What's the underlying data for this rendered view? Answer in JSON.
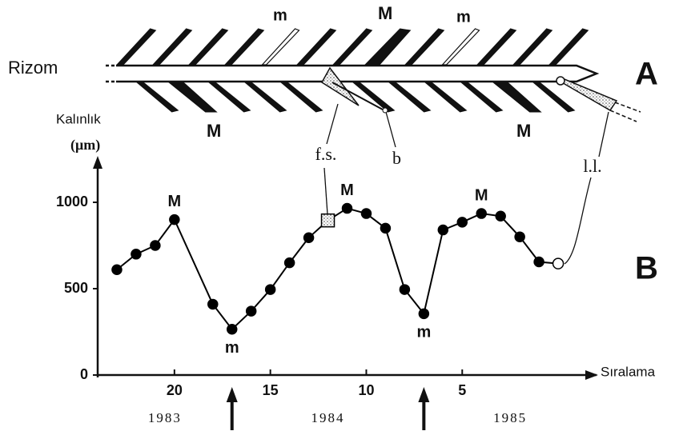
{
  "diagram": {
    "rhizome_label": "Rizom",
    "panel": "A",
    "leaf_labels": [
      "m",
      "M",
      "m",
      "M",
      "M"
    ],
    "b_label": "b"
  },
  "chart_data": {
    "type": "line",
    "panel": "B",
    "y_label": "Kalınlık",
    "y_unit": "(μm)",
    "x_label": "Sıralama",
    "x": [
      23,
      22,
      21,
      20,
      18,
      17,
      16,
      15,
      14,
      13,
      12,
      11,
      10,
      9,
      8,
      7,
      6,
      5,
      4,
      3,
      2,
      1,
      0
    ],
    "values": [
      610,
      700,
      750,
      900,
      410,
      265,
      370,
      495,
      650,
      795,
      895,
      965,
      935,
      850,
      495,
      355,
      840,
      885,
      935,
      920,
      800,
      655,
      645
    ],
    "color": "#000000",
    "xlim": [
      24,
      -2
    ],
    "ylim": [
      0,
      1250
    ],
    "xticks": [
      20,
      15,
      10,
      5
    ],
    "yticks": [
      0,
      500,
      1000
    ],
    "point_labels": [
      {
        "x": 20,
        "text": "M",
        "placement": "above"
      },
      {
        "x": 17,
        "text": "m",
        "placement": "below"
      },
      {
        "x": 11,
        "text": "M",
        "placement": "above"
      },
      {
        "x": 7,
        "text": "m",
        "placement": "below"
      },
      {
        "x": 4,
        "text": "M",
        "placement": "above"
      }
    ],
    "years": [
      "1983",
      "1984",
      "1985"
    ],
    "year_boundaries": [
      17,
      7
    ],
    "special_points": [
      {
        "x": 12,
        "label": "f.s.",
        "marker": "square"
      },
      {
        "x": 0,
        "label": "l.l.",
        "marker": "open-circle"
      }
    ]
  }
}
